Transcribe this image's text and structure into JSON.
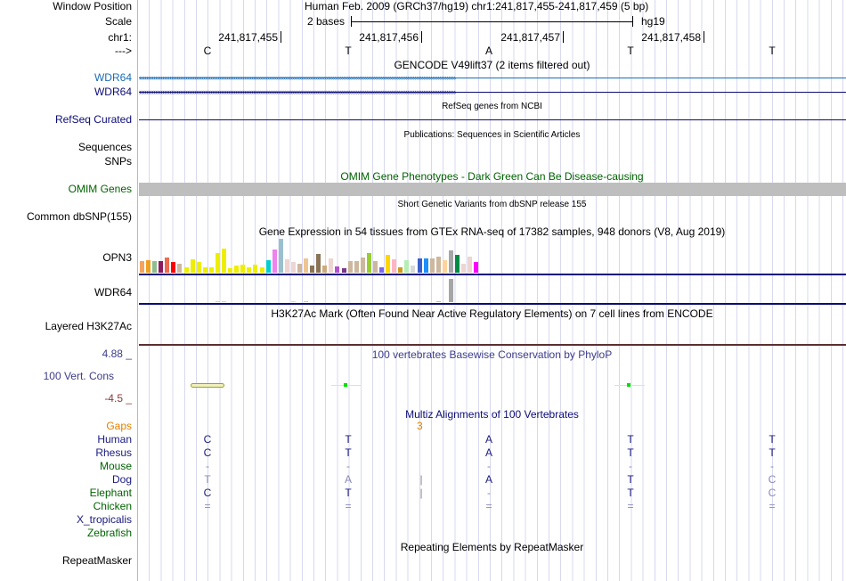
{
  "labels": {
    "window_position": "Window Position",
    "scale": "Scale",
    "chr": "chr1:",
    "strand": "--->",
    "wdr64_a": "WDR64",
    "wdr64_b": "WDR64",
    "refseq": "RefSeq Curated",
    "sequences": "Sequences",
    "snps": "SNPs",
    "omim": "OMIM Genes",
    "dbsnp": "Common dbSNP(155)",
    "opn3": "OPN3",
    "wdr64_gtex": "WDR64",
    "h3k27ac": "Layered H3K27Ac",
    "phylop_max": "4.88 _",
    "phylop_label": "100 Vert. Cons",
    "phylop_min": "-4.5 _",
    "gaps": "Gaps",
    "repeatmasker": "RepeatMasker"
  },
  "header": {
    "position": "Human Feb. 2009 (GRCh37/hg19)   chr1:241,817,455-241,817,459 (5 bp)",
    "scale_text": "2 bases",
    "assembly": "hg19",
    "coords": [
      "241,817,455",
      "241,817,456",
      "241,817,457",
      "241,817,458"
    ],
    "bases": [
      "C",
      "T",
      "A",
      "T",
      "T"
    ]
  },
  "titles": {
    "gencode": "GENCODE V49lift37 (2 items filtered out)",
    "refseq": "RefSeq genes from NCBI",
    "publications": "Publications: Sequences in Scientific Articles",
    "omim": "OMIM Gene Phenotypes - Dark Green Can Be Disease-causing",
    "dbsnp": "Short Genetic Variants from dbSNP release 155",
    "gtex": "Gene Expression in 54 tissues from GTEx RNA-seq of 17382 samples, 948 donors (V8, Aug 2019)",
    "h3k27ac": "H3K27Ac Mark (Often Found Near Active Regulatory Elements) on 7 cell lines from ENCODE",
    "phylop": "100 vertebrates Basewise Conservation by PhyloP",
    "multiz": "Multiz Alignments of 100 Vertebrates",
    "repeat": "Repeating Elements by RepeatMasker"
  },
  "gaps_value": "3",
  "alignment": [
    {
      "species": "Human",
      "color": "#1a1a80",
      "bases": [
        "C",
        "T",
        "A",
        "T",
        "T"
      ],
      "light": [
        0,
        0,
        0,
        0,
        0
      ]
    },
    {
      "species": "Rhesus",
      "color": "#1a1a80",
      "bases": [
        "C",
        "T",
        "A",
        "T",
        "T"
      ],
      "light": [
        0,
        0,
        0,
        0,
        0
      ]
    },
    {
      "species": "Mouse",
      "color": "#006400",
      "bases": [
        "-",
        "-",
        "-",
        "-",
        "-"
      ],
      "light": [
        1,
        1,
        1,
        1,
        1
      ]
    },
    {
      "species": "Dog",
      "color": "#1a1a80",
      "bases": [
        "T",
        "A",
        "A",
        "T",
        "C"
      ],
      "light": [
        1,
        1,
        0,
        0,
        1
      ],
      "insert": "|"
    },
    {
      "species": "Elephant",
      "color": "#006400",
      "bases": [
        "C",
        "T",
        "-",
        "T",
        "C"
      ],
      "light": [
        0,
        0,
        1,
        0,
        1
      ],
      "insert": "|"
    },
    {
      "species": "Chicken",
      "color": "#006400",
      "bases": [
        "=",
        "=",
        "=",
        "=",
        "="
      ],
      "light": [
        1,
        1,
        1,
        1,
        1
      ]
    },
    {
      "species": "X_tropicalis",
      "color": "#1a1a80",
      "bases": [
        "",
        "",
        "",
        "",
        ""
      ],
      "light": [
        0,
        0,
        0,
        0,
        0
      ]
    },
    {
      "species": "Zebrafish",
      "color": "#006400",
      "bases": [
        "",
        "",
        "",
        "",
        ""
      ],
      "light": [
        0,
        0,
        0,
        0,
        0
      ]
    }
  ],
  "gtex": {
    "colors": [
      "#f4a460",
      "#f0a020",
      "#8fbc8f",
      "#8b1c62",
      "#ee6a50",
      "#ff0000",
      "#cdb79e",
      "#eeee00",
      "#eeee00",
      "#eeee00",
      "#eeee00",
      "#eeee00",
      "#eeee00",
      "#eeee00",
      "#eeee00",
      "#eeee00",
      "#eeee00",
      "#eeee00",
      "#eeee00",
      "#eeee00",
      "#00ced1",
      "#ee82ee",
      "#9ac0cd",
      "#eed5d2",
      "#eed5d2",
      "#cdb79e",
      "#eec591",
      "#8b7355",
      "#8b7355",
      "#cdaa7d",
      "#eed5d2",
      "#b452cd",
      "#7a378b",
      "#cdb79e",
      "#cdb79e",
      "#cdb79e",
      "#9acd32",
      "#cdb79e",
      "#7b68ee",
      "#ffd700",
      "#ffb6c1",
      "#cd9b1d",
      "#b4eeb4",
      "#d9d9d9",
      "#3a5fcd",
      "#1e90ff",
      "#cdb79e",
      "#cdb79e",
      "#ffd39b",
      "#a6a6a6",
      "#008b45",
      "#eed5d2",
      "#eed5d2",
      "#ff00ff"
    ],
    "opn3": [
      13,
      14,
      13,
      13,
      17,
      12,
      10,
      6,
      15,
      12,
      6,
      6,
      22,
      27,
      5,
      8,
      9,
      6,
      9,
      6,
      14,
      26,
      38,
      15,
      12,
      10,
      16,
      8,
      21,
      8,
      16,
      7,
      5,
      13,
      13,
      17,
      22,
      13,
      6,
      20,
      15,
      6,
      14,
      8,
      16,
      16,
      16,
      18,
      14,
      25,
      20,
      10,
      18,
      12
    ],
    "wdr64": [
      0,
      0,
      0,
      0,
      0,
      0,
      0,
      0,
      0,
      0,
      0,
      0,
      1,
      1,
      0,
      0,
      0,
      0,
      0,
      0,
      0,
      0,
      0,
      0,
      1,
      0,
      1,
      0,
      0,
      0,
      0,
      0,
      0,
      0,
      0,
      0,
      0,
      0,
      0,
      0,
      0,
      0,
      0,
      0,
      0,
      0,
      0,
      1,
      0,
      26,
      0,
      0,
      0,
      0
    ]
  }
}
